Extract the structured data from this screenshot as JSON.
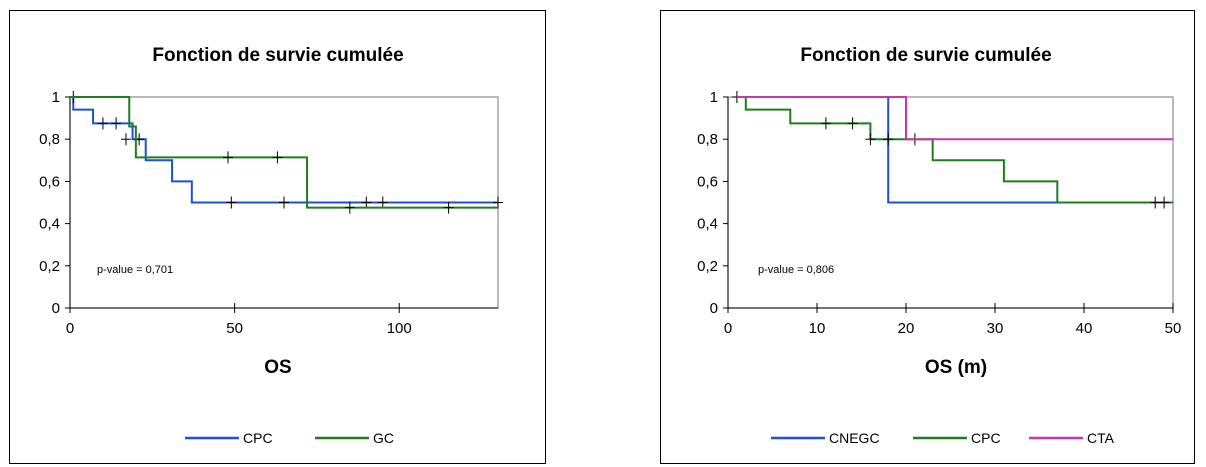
{
  "chart_data": [
    {
      "type": "line",
      "title": "Fonction de survie cumulée",
      "xlabel": "OS",
      "ylabel": "",
      "xlim": [
        0,
        130
      ],
      "ylim": [
        0,
        1
      ],
      "xticks": [
        0,
        50,
        100
      ],
      "yticks": [
        0,
        0.2,
        0.4,
        0.6,
        0.8,
        1
      ],
      "ytick_labels": [
        "0",
        "0,2",
        "0,4",
        "0,6",
        "0,8",
        "1"
      ],
      "xtick_labels": [
        "0",
        "50",
        "100"
      ],
      "annotation": "p-value = 0,701",
      "grid": false,
      "legend_position": "bottom",
      "series": [
        {
          "name": "CPC",
          "color": "#1f4fd8",
          "steps": [
            [
              0,
              1
            ],
            [
              1,
              0.94
            ],
            [
              7,
              0.875
            ],
            [
              19,
              0.8
            ],
            [
              23,
              0.7
            ],
            [
              31,
              0.6
            ],
            [
              37,
              0.5
            ],
            [
              130,
              0.5
            ]
          ],
          "censored": [
            [
              1,
              1
            ],
            [
              10,
              0.875
            ],
            [
              14,
              0.875
            ],
            [
              17,
              0.8
            ],
            [
              21,
              0.8
            ],
            [
              49,
              0.5
            ],
            [
              65,
              0.5
            ],
            [
              90,
              0.5
            ],
            [
              95,
              0.5
            ],
            [
              130,
              0.5
            ]
          ]
        },
        {
          "name": "GC",
          "color": "#1e7d1e",
          "steps": [
            [
              0,
              1
            ],
            [
              18,
              0.86
            ],
            [
              20,
              0.714
            ],
            [
              72,
              0.476
            ],
            [
              130,
              0.476
            ]
          ],
          "censored": [
            [
              48,
              0.714
            ],
            [
              63,
              0.714
            ],
            [
              85,
              0.476
            ],
            [
              115,
              0.476
            ]
          ]
        }
      ]
    },
    {
      "type": "line",
      "title": "Fonction de survie cumulée",
      "xlabel": "OS (m)",
      "ylabel": "",
      "xlim": [
        0,
        50
      ],
      "ylim": [
        0,
        1
      ],
      "xticks": [
        0,
        10,
        20,
        30,
        40,
        50
      ],
      "yticks": [
        0,
        0.2,
        0.4,
        0.6,
        0.8,
        1
      ],
      "ytick_labels": [
        "0",
        "0,2",
        "0,4",
        "0,6",
        "0,8",
        "1"
      ],
      "xtick_labels": [
        "0",
        "10",
        "20",
        "30",
        "40",
        "50"
      ],
      "annotation": "p-value = 0,806",
      "grid": false,
      "legend_position": "bottom",
      "series": [
        {
          "name": "CNEGC",
          "color": "#1f4fd8",
          "steps": [
            [
              1,
              1
            ],
            [
              18,
              0.5
            ],
            [
              37,
              0.5
            ]
          ],
          "censored": []
        },
        {
          "name": "CPC",
          "color": "#1e7d1e",
          "steps": [
            [
              1,
              1
            ],
            [
              2,
              0.94
            ],
            [
              7,
              0.875
            ],
            [
              16,
              0.8
            ],
            [
              23,
              0.7
            ],
            [
              31,
              0.6
            ],
            [
              37,
              0.5
            ],
            [
              50,
              0.5
            ]
          ],
          "censored": [
            [
              1,
              1
            ],
            [
              11,
              0.875
            ],
            [
              14,
              0.875
            ],
            [
              16,
              0.8
            ],
            [
              18,
              0.8
            ],
            [
              21,
              0.8
            ],
            [
              48,
              0.5
            ],
            [
              49,
              0.5
            ]
          ]
        },
        {
          "name": "CTA",
          "color": "#c838a8",
          "steps": [
            [
              1,
              1
            ],
            [
              20,
              0.8
            ],
            [
              50,
              0.8
            ]
          ],
          "censored": []
        }
      ]
    }
  ]
}
